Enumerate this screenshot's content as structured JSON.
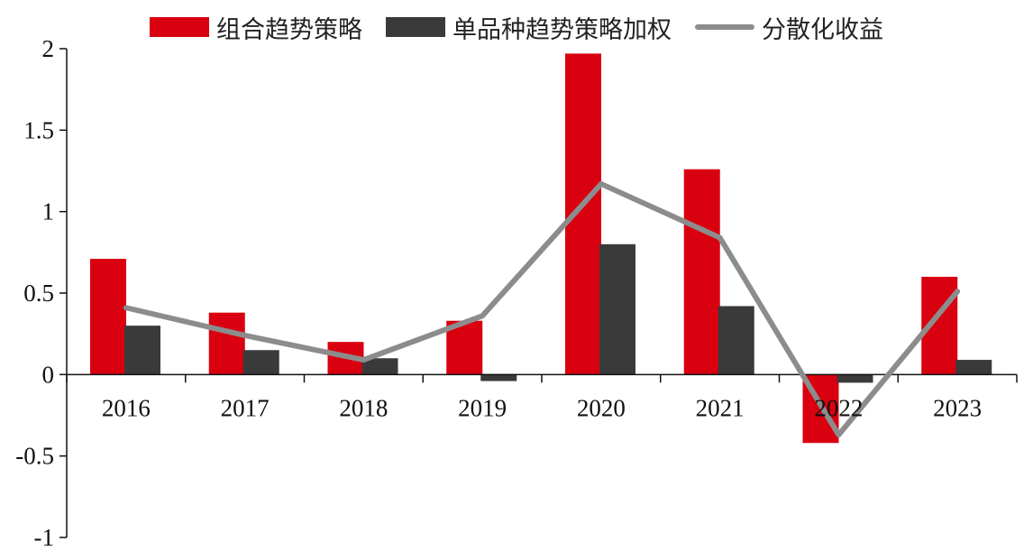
{
  "chart_data": {
    "type": "bar",
    "categories": [
      "2016",
      "2017",
      "2018",
      "2019",
      "2020",
      "2021",
      "2022",
      "2023"
    ],
    "series": [
      {
        "name": "组合趋势策略",
        "kind": "bar",
        "color": "#d9000f",
        "values": [
          0.71,
          0.38,
          0.2,
          0.33,
          1.97,
          1.26,
          -0.42,
          0.6
        ]
      },
      {
        "name": "单品种趋势策略加权",
        "kind": "bar",
        "color": "#3a3a3a",
        "values": [
          0.3,
          0.15,
          0.1,
          -0.04,
          0.8,
          0.42,
          -0.05,
          0.09
        ]
      },
      {
        "name": "分散化收益",
        "kind": "line",
        "color": "#8c8c8c",
        "values": [
          0.41,
          0.24,
          0.09,
          0.36,
          1.17,
          0.84,
          -0.37,
          0.51
        ]
      }
    ],
    "yticks": [
      "-1",
      "-0.5",
      "0",
      "0.5",
      "1",
      "1.5",
      "2"
    ],
    "ylim": [
      -1,
      2
    ],
    "title": "",
    "xlabel": "",
    "ylabel": "",
    "legend_position": "top-center"
  }
}
